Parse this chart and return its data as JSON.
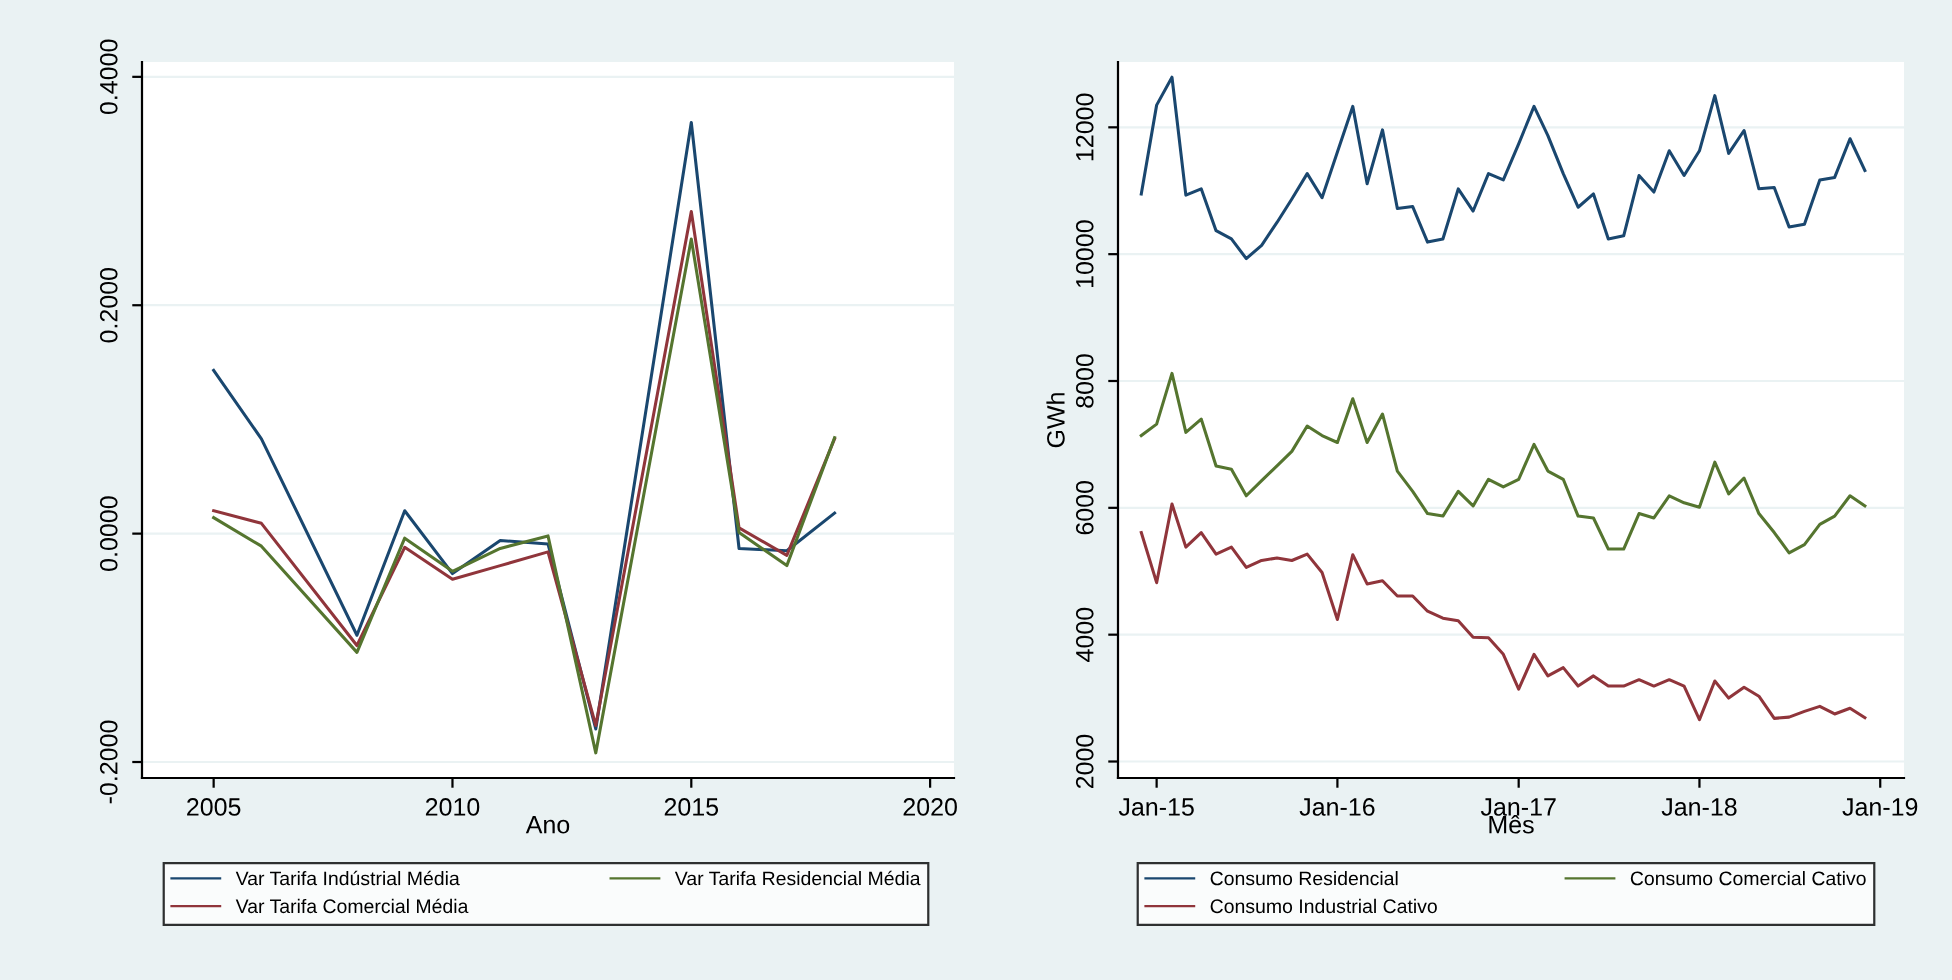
{
  "chart_data": [
    {
      "type": "line",
      "xlabel": "Ano",
      "xlim": [
        2003.5,
        2020.5
      ],
      "xticks": [
        2005,
        2010,
        2015,
        2020
      ],
      "ylim": [
        -0.214,
        0.413
      ],
      "yticks": [
        {
          "value": -0.2,
          "label": "-0.2000"
        },
        {
          "value": 0,
          "label": "0.0000"
        },
        {
          "value": 0.2,
          "label": "0.2000"
        },
        {
          "value": 0.4,
          "label": "0.4000"
        }
      ],
      "grid": "y",
      "legend": "bottom",
      "marker": "none",
      "line_style": "solid",
      "series": [
        {
          "name": "Var Tarifa Indústrial Média",
          "color": "#1a476f",
          "x": [
            2005,
            2006,
            2008,
            2009,
            2010,
            2011,
            2012,
            2013,
            2015,
            2016,
            2017,
            2018
          ],
          "values": [
            0.143,
            0.083,
            -0.089,
            0.02,
            -0.035,
            -0.006,
            -0.009,
            -0.171,
            0.36,
            -0.013,
            -0.015,
            0.018
          ]
        },
        {
          "name": "Var Tarifa Comercial Média",
          "color": "#90353b",
          "x": [
            2005,
            2006,
            2008,
            2009,
            2010,
            2011,
            2012,
            2013,
            2015,
            2016,
            2017,
            2018
          ],
          "values": [
            0.02,
            0.009,
            -0.098,
            -0.012,
            -0.04,
            -0.028,
            -0.016,
            -0.168,
            0.282,
            0.005,
            -0.019,
            0.083
          ]
        },
        {
          "name": "Var Tarifa Residencial Média",
          "color": "#55752f",
          "x": [
            2005,
            2006,
            2008,
            2009,
            2010,
            2011,
            2012,
            2013,
            2015,
            2016,
            2017,
            2018
          ],
          "values": [
            0.014,
            -0.011,
            -0.104,
            -0.004,
            -0.033,
            -0.013,
            -0.002,
            -0.192,
            0.258,
            0.001,
            -0.028,
            0.084
          ]
        }
      ]
    },
    {
      "type": "line",
      "xlabel": "Mês",
      "ylabel": "GWh",
      "xlim": [
        "2014-10-15",
        "2019-02-18"
      ],
      "xticks": [
        {
          "value": "2015-01",
          "label": "Jan-15"
        },
        {
          "value": "2016-01",
          "label": "Jan-16"
        },
        {
          "value": "2017-01",
          "label": "Jan-17"
        },
        {
          "value": "2018-01",
          "label": "Jan-18"
        },
        {
          "value": "2019-01",
          "label": "Jan-19"
        }
      ],
      "ylim": [
        1740,
        13030
      ],
      "yticks": [
        2000,
        4000,
        6000,
        8000,
        10000,
        12000
      ],
      "grid": "y",
      "legend": "bottom",
      "marker": "none",
      "line_style": "solid",
      "x": [
        "2014-12",
        "2015-01",
        "2015-02",
        "2015-03",
        "2015-04",
        "2015-05",
        "2015-06",
        "2015-07",
        "2015-08",
        "2015-09",
        "2015-10",
        "2015-11",
        "2015-12",
        "2016-01",
        "2016-02",
        "2016-03",
        "2016-04",
        "2016-05",
        "2016-06",
        "2016-07",
        "2016-08",
        "2016-09",
        "2016-10",
        "2016-11",
        "2016-12",
        "2017-01",
        "2017-02",
        "2017-03",
        "2017-04",
        "2017-05",
        "2017-06",
        "2017-07",
        "2017-08",
        "2017-09",
        "2017-10",
        "2017-11",
        "2017-12",
        "2018-01",
        "2018-02",
        "2018-03",
        "2018-04",
        "2018-05",
        "2018-06",
        "2018-07",
        "2018-08",
        "2018-09",
        "2018-10",
        "2018-11",
        "2018-12"
      ],
      "series": [
        {
          "name": "Consumo Residencial",
          "color": "#1a476f",
          "values": [
            10950,
            12350,
            12790,
            10930,
            11030,
            10370,
            10240,
            9930,
            10140,
            10500,
            10870,
            11270,
            10890,
            11610,
            12330,
            11110,
            11960,
            10720,
            10750,
            10190,
            10240,
            11030,
            10680,
            11270,
            11170,
            11740,
            12330,
            11870,
            11270,
            10740,
            10950,
            10240,
            10290,
            11240,
            10980,
            11630,
            11240,
            11630,
            12500,
            11590,
            11950,
            11030,
            11050,
            10430,
            10470,
            11170,
            11210,
            11820,
            11320
          ]
        },
        {
          "name": "Consumo Industrial Cativo",
          "color": "#90353b",
          "values": [
            5610,
            4820,
            6060,
            5380,
            5610,
            5270,
            5380,
            5060,
            5170,
            5210,
            5170,
            5270,
            4980,
            4240,
            5260,
            4800,
            4850,
            4610,
            4610,
            4370,
            4260,
            4220,
            3960,
            3950,
            3690,
            3140,
            3690,
            3350,
            3480,
            3190,
            3350,
            3190,
            3190,
            3290,
            3190,
            3290,
            3190,
            2660,
            3270,
            3000,
            3170,
            3030,
            2680,
            2700,
            2790,
            2870,
            2750,
            2840,
            2690
          ]
        },
        {
          "name": "Consumo Comercial Cativo",
          "color": "#55752f",
          "values": [
            7140,
            7320,
            8120,
            7190,
            7400,
            6660,
            6610,
            6190,
            6430,
            6660,
            6890,
            7290,
            7140,
            7030,
            7720,
            7030,
            7480,
            6580,
            6260,
            5910,
            5870,
            6260,
            6030,
            6450,
            6330,
            6450,
            7000,
            6580,
            6450,
            5870,
            5840,
            5350,
            5350,
            5910,
            5840,
            6190,
            6080,
            6010,
            6720,
            6220,
            6470,
            5910,
            5610,
            5290,
            5420,
            5740,
            5870,
            6190,
            6030
          ]
        }
      ]
    }
  ]
}
